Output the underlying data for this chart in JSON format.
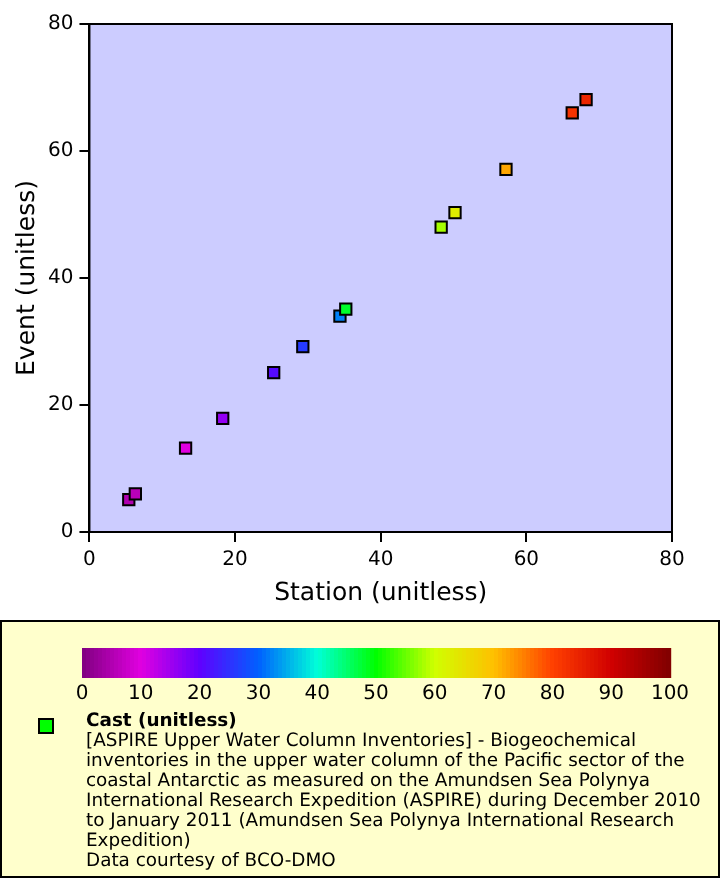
{
  "chart_data": {
    "type": "scatter",
    "xlabel": "Station (unitless)",
    "ylabel": "Event (unitless)",
    "clabel": "Cast (unitless)",
    "x": [
      5.4,
      6.3,
      13.2,
      18.3,
      25.3,
      29.3,
      34.4,
      35.2,
      48.3,
      50.2,
      57.2,
      66.3,
      68.2
    ],
    "values": [
      5.1,
      6.0,
      13.2,
      17.9,
      25.1,
      29.2,
      34.0,
      35.1,
      48.0,
      50.3,
      57.1,
      66.0,
      68.1
    ],
    "cvalues": [
      5,
      6,
      10,
      16,
      21,
      26,
      32,
      48,
      58,
      63,
      72,
      82,
      84
    ],
    "xlim": [
      0,
      80
    ],
    "ylim": [
      0,
      80
    ],
    "xticks": [
      0,
      20,
      40,
      60,
      80
    ],
    "yticks": [
      0,
      20,
      40,
      60,
      80
    ],
    "clim": [
      0,
      100
    ],
    "cticks": [
      0,
      10,
      20,
      30,
      40,
      50,
      60,
      70,
      80,
      90,
      100
    ],
    "marker": "square",
    "annotations": [
      "[ASPIRE Upper Water Column Inventories] - Biogeochemical inventories in the upper water column of the Pacific sector of the coastal Antarctic as measured on the Amundsen Sea Polynya International Research Expedition (ASPIRE) during December 2010 to January 2011 (Amundsen Sea Polynya International Research Expedition)",
      "Data courtesy of BCO-DMO"
    ]
  }
}
